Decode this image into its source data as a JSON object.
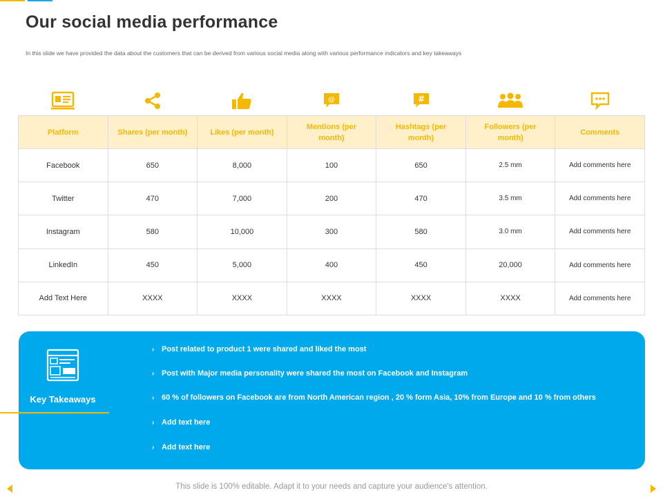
{
  "slide": {
    "title": "Our social media performance",
    "subtitle": "In this slide we have provided the data about the customers that can be derived from various social media along with various performance indicators and  key takeaways",
    "accent_color": "#F5B800",
    "secondary_color": "#00A9EC"
  },
  "icons": [
    "id-card-icon",
    "share-icon",
    "thumbs-up-icon",
    "at-sign-bubble-icon",
    "hashtag-bubble-icon",
    "users-group-icon",
    "chat-bubble-icon"
  ],
  "table": {
    "headers": [
      "Platform",
      "Shares (per month)",
      "Likes (per month)",
      "Mentions (per month)",
      "Hashtags (per month)",
      "Followers (per month)",
      "Comments"
    ],
    "rows": [
      [
        "Facebook",
        "650",
        "8,000",
        "100",
        "650",
        "2.5 mm",
        "Add comments here"
      ],
      [
        "Twitter",
        "470",
        "7,000",
        "200",
        "470",
        "3.5 mm",
        "Add comments here"
      ],
      [
        "Instagram",
        "580",
        "10,000",
        "300",
        "580",
        "3.0 mm",
        "Add comments here"
      ],
      [
        "LinkedIn",
        "450",
        "5,000",
        "400",
        "450",
        "20,000",
        "Add comments here"
      ],
      [
        "Add Text Here",
        "XXXX",
        "XXXX",
        "XXXX",
        "XXXX",
        "XXXX",
        "Add comments here"
      ]
    ]
  },
  "takeaways": {
    "label": "Key Takeaways",
    "items": [
      "Post related to product 1 were shared and liked the most",
      "Post with Major media personality were shared the most on Facebook and Instagram",
      "60 % of followers on Facebook are from North American region , 20 % form Asia, 10% from Europe and 10 % from others",
      "Add text here",
      "Add text here"
    ]
  },
  "footer": "This slide is 100% editable. Adapt it to your needs and capture your audience's attention."
}
